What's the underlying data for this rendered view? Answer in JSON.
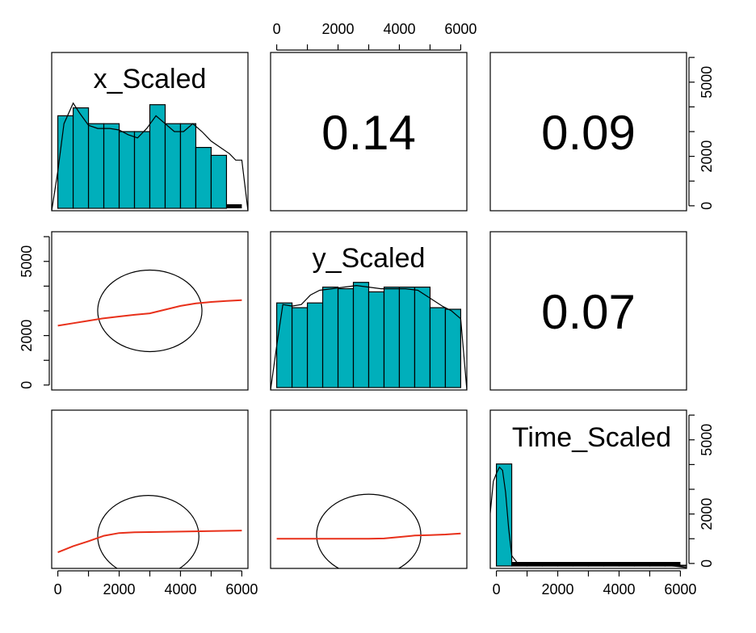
{
  "chart_data": {
    "type": "pairs",
    "variables": [
      "x_Scaled",
      "y_Scaled",
      "Time_Scaled"
    ],
    "correlations": [
      {
        "row": 0,
        "col": 1,
        "label": "0.14"
      },
      {
        "row": 0,
        "col": 2,
        "label": "0.09"
      },
      {
        "row": 1,
        "col": 2,
        "label": "0.07"
      }
    ],
    "axis": {
      "limits": [
        -200,
        6200
      ],
      "ticks": [
        0,
        1000,
        2000,
        3000,
        4000,
        5000,
        6000
      ],
      "labeled_ticks": [
        0,
        2000,
        4000,
        6000
      ],
      "labeled_ticks_right": [
        0,
        2000,
        5000
      ],
      "labeled_ticks_left": [
        0,
        2000,
        5000
      ]
    },
    "histograms": [
      {
        "variable": "x_Scaled",
        "bin_width": 500,
        "bins_start": 0,
        "counts": [
          0.6,
          0.65,
          0.55,
          0.55,
          0.5,
          0.5,
          0.67,
          0.55,
          0.55,
          0.4,
          0.35
        ],
        "density_x": [
          -200,
          0,
          200,
          500,
          700,
          1000,
          1300,
          1700,
          2000,
          2300,
          2600,
          2900,
          3200,
          3500,
          3800,
          4100,
          4400,
          4700,
          5000,
          5300,
          5600,
          5800,
          6000,
          6200
        ],
        "density_y": [
          0.0,
          0.25,
          0.55,
          0.68,
          0.62,
          0.54,
          0.52,
          0.52,
          0.51,
          0.48,
          0.46,
          0.52,
          0.6,
          0.55,
          0.5,
          0.5,
          0.55,
          0.5,
          0.44,
          0.4,
          0.36,
          0.32,
          0.32,
          0.0
        ]
      },
      {
        "variable": "y_Scaled",
        "bin_width": 500,
        "bins_start": 0,
        "counts": [
          0.55,
          0.52,
          0.55,
          0.65,
          0.64,
          0.68,
          0.62,
          0.65,
          0.65,
          0.65,
          0.52,
          0.51
        ],
        "density_x": [
          -200,
          0,
          200,
          500,
          800,
          1100,
          1400,
          1800,
          2200,
          2600,
          3000,
          3400,
          3800,
          4200,
          4600,
          5000,
          5400,
          5700,
          6000,
          6200
        ],
        "density_y": [
          0.0,
          0.28,
          0.54,
          0.53,
          0.54,
          0.6,
          0.63,
          0.64,
          0.65,
          0.66,
          0.65,
          0.64,
          0.64,
          0.64,
          0.63,
          0.58,
          0.53,
          0.5,
          0.45,
          0.0
        ]
      },
      {
        "variable": "Time_Scaled",
        "bin_width": 500,
        "bins_start": 0,
        "counts": [
          0.66,
          0.02,
          0.02,
          0.02,
          0.02,
          0.02,
          0.02,
          0.02,
          0.02,
          0.02,
          0.02,
          0.02,
          0.02
        ],
        "density_x": [
          -200,
          -100,
          0,
          100,
          200,
          300,
          400,
          500,
          700,
          1000,
          2000,
          3000,
          4000,
          5000,
          5500,
          5800,
          6000,
          6200
        ],
        "density_y": [
          0.35,
          0.55,
          0.6,
          0.64,
          0.62,
          0.48,
          0.25,
          0.08,
          0.03,
          0.02,
          0.02,
          0.02,
          0.02,
          0.025,
          0.02,
          0.015,
          0.01,
          0.005
        ]
      }
    ],
    "scatter_panels": [
      {
        "row": 1,
        "col": 0,
        "x": "x_Scaled",
        "y": "y_Scaled",
        "ellipse": {
          "cx": 3000,
          "cy": 3000,
          "rx": 1700,
          "ry": 1650
        },
        "smooth": {
          "x": [
            0,
            500,
            1000,
            1500,
            2000,
            2500,
            3000,
            3500,
            4000,
            4500,
            5000,
            5500,
            6000
          ],
          "y": [
            2400,
            2500,
            2600,
            2700,
            2770,
            2840,
            2900,
            3050,
            3200,
            3300,
            3360,
            3400,
            3430
          ]
        }
      },
      {
        "row": 2,
        "col": 0,
        "x": "x_Scaled",
        "y": "Time_Scaled",
        "ellipse": {
          "cx": 2950,
          "cy": 1100,
          "rx": 1650,
          "ry": 1650
        },
        "smooth": {
          "x": [
            0,
            500,
            1000,
            1500,
            2000,
            2500,
            3000,
            4000,
            5000,
            6000
          ],
          "y": [
            450,
            700,
            900,
            1120,
            1230,
            1260,
            1270,
            1290,
            1310,
            1330
          ]
        }
      },
      {
        "row": 2,
        "col": 1,
        "x": "y_Scaled",
        "y": "Time_Scaled",
        "ellipse": {
          "cx": 3000,
          "cy": 1150,
          "rx": 1700,
          "ry": 1650
        },
        "smooth": {
          "x": [
            0,
            500,
            1000,
            2000,
            3000,
            3500,
            4000,
            4500,
            5000,
            5500,
            6000
          ],
          "y": [
            1000,
            1000,
            1000,
            1000,
            1000,
            1010,
            1070,
            1130,
            1150,
            1170,
            1210
          ]
        }
      }
    ]
  }
}
